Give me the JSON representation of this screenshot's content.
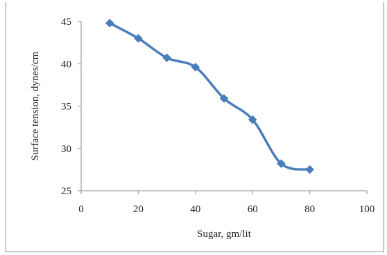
{
  "chart_data": {
    "type": "line",
    "title": "",
    "xlabel": "Sugar, gm/lit",
    "ylabel": "Surface tension, dynes/cm",
    "xlim": [
      0,
      100
    ],
    "ylim": [
      25,
      45
    ],
    "x_ticks": [
      0,
      20,
      40,
      60,
      80,
      100
    ],
    "y_ticks": [
      25,
      30,
      35,
      40,
      45
    ],
    "grid": false,
    "legend": "none",
    "series": [
      {
        "color": "#4a7ebb",
        "marker": "diamond",
        "x": [
          10,
          20,
          30,
          40,
          50,
          60,
          70,
          80
        ],
        "y": [
          44.8,
          43.0,
          40.7,
          39.6,
          35.9,
          33.4,
          28.2,
          27.5
        ]
      }
    ]
  }
}
